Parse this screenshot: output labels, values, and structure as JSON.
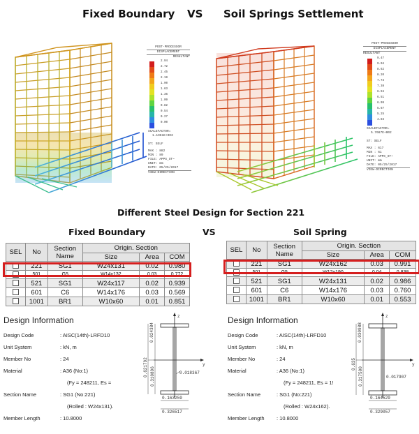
{
  "header": {
    "left_title": "Fixed Boundary",
    "vs": "VS",
    "right_title": "Soil Springs Settlement"
  },
  "left_legend": {
    "header": "POST-PROCESSOR",
    "sub": "DISPLACEMENT",
    "label": "RESULTANT",
    "ticks": [
      "2.94",
      "2.72",
      "2.45",
      "2.19",
      "1.90",
      "1.63",
      "1.36",
      "1.09",
      "0.82",
      "0.54",
      "0.27",
      "0.00"
    ],
    "scale_label": "SCALEFACTOR=",
    "scale_value": "1.1961E+003",
    "info": [
      "ST: SELF",
      "MAX : 882",
      "MIN : 89",
      "FILE: APPS_ST~",
      "UNIT: mm",
      "DATE: 05/25/2017"
    ],
    "view": "VIEW-DIRECTION"
  },
  "right_legend": {
    "header": "POST-PROCESSOR",
    "sub": "DISPLACEMENT",
    "label": "RESULTANT",
    "ticks": [
      "9.47",
      "9.04",
      "8.62",
      "8.20",
      "7.73",
      "7.38",
      "6.94",
      "6.51",
      "6.09",
      "5.67",
      "5.25",
      "4.83"
    ],
    "scale_label": "SCALEFACTOR=",
    "scale_value": "5.7667E+002",
    "info": [
      "ST: SELF",
      "MAX : 617",
      "MIN : 61",
      "FILE: APPS_ST~",
      "UNIT: mm",
      "DATE: 05/25/2017"
    ],
    "view": "VIEW-DIRECTION"
  },
  "section_title": "Different Steel Design for Section 221",
  "left_table": {
    "caption": "Fixed Boundary",
    "headers": {
      "sel": "SEL",
      "no": "No",
      "section_name": "Section Name",
      "origin": "Origin. Section",
      "size": "Size",
      "area": "Area",
      "com": "COM"
    },
    "rows": [
      {
        "no": "221",
        "sect": "SG1",
        "size": "W24x131",
        "area": "0.02",
        "com": "0.980"
      },
      {
        "no": "501",
        "sect": "G5",
        "size": "W14x132",
        "area": "0.03",
        "com": "0.772"
      },
      {
        "no": "521",
        "sect": "SG1",
        "size": "W24x117",
        "area": "0.02",
        "com": "0.939"
      },
      {
        "no": "601",
        "sect": "C6",
        "size": "W14x176",
        "area": "0.03",
        "com": "0.569"
      },
      {
        "no": "1001",
        "sect": "BR1",
        "size": "W10x60",
        "area": "0.01",
        "com": "0.851"
      }
    ]
  },
  "vs2": "VS",
  "right_table": {
    "caption": "Soil Spring",
    "headers": {
      "sel": "SEL",
      "no": "No",
      "section_name": "Section Name",
      "origin": "Origin. Section",
      "size": "Size",
      "area": "Area",
      "com": "COM"
    },
    "rows": [
      {
        "no": "221",
        "sect": "SG1",
        "size": "W24x162",
        "area": "0.03",
        "com": "0.991"
      },
      {
        "no": "501",
        "sect": "G5",
        "size": "W12x190",
        "area": "0.04",
        "com": "0.838"
      },
      {
        "no": "521",
        "sect": "SG1",
        "size": "W24x131",
        "area": "0.02",
        "com": "0.986"
      },
      {
        "no": "601",
        "sect": "C6",
        "size": "W14x176",
        "area": "0.03",
        "com": "0.760"
      },
      {
        "no": "1001",
        "sect": "BR1",
        "size": "W10x60",
        "area": "0.01",
        "com": "0.553"
      }
    ]
  },
  "left_design": {
    "title": "Design Information",
    "labels": [
      "Design Code",
      "Unit System",
      "Member No",
      "Material",
      "",
      "Section Name",
      "",
      "Member Length"
    ],
    "values": [
      ": AISC(14th)-LRFD10",
      ": kN, m",
      ": 24",
      ": A36 (No:1)",
      "(Fy =  248211, Es =",
      ": SG1 (No:221)",
      "(Rolled : W24x131).",
      ": 10.8000"
    ],
    "dims": {
      "top_flange": "0.024384",
      "height": "0.621792",
      "web": "0.310896",
      "tw": "0.018367",
      "bf_half": "0.163259",
      "bf": "0.326517",
      "z": "z",
      "y": "y"
    }
  },
  "right_design": {
    "title": "Design Information",
    "labels": [
      "Design Code",
      "Unit System",
      "Member No",
      "Material",
      "",
      "Section Name",
      "",
      "Member Length"
    ],
    "values": [
      ": AISC(14th)-LRFD10",
      ": kN, m",
      ": 24",
      ": A36 (No:1)",
      "(Fy =  248211, Es = 1!",
      ": SG1 (No:221)",
      "(Rolled : W24x162).",
      ": 10.8000"
    ],
    "dims": {
      "top_flange": "0.030988",
      "height": "0.635",
      "web": "0.317500",
      "tw": "0.017907",
      "bf_half": "0.164529",
      "bf": "0.329057",
      "z": "z",
      "y": "y"
    }
  },
  "colors": {
    "highlight": "#d51e1e",
    "header_bg": "#e4e4e4",
    "grid": "#8c8c8c"
  }
}
